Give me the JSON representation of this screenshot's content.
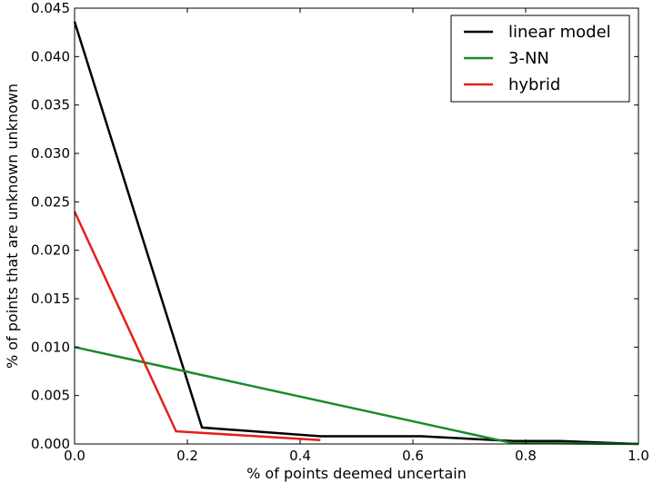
{
  "chart_data": {
    "type": "line",
    "title": "",
    "xlabel": "% of points deemed uncertain",
    "ylabel": "% of points that are unknown unknown",
    "xlim": [
      0.0,
      1.0
    ],
    "ylim": [
      0.0,
      0.045
    ],
    "x_ticks": [
      "0.0",
      "0.2",
      "0.4",
      "0.6",
      "0.8",
      "1.0"
    ],
    "y_ticks": [
      "0.000",
      "0.005",
      "0.010",
      "0.015",
      "0.020",
      "0.025",
      "0.030",
      "0.035",
      "0.040",
      "0.045"
    ],
    "grid": false,
    "legend_position": "top-right",
    "series": [
      {
        "name": "linear model",
        "color": "#000000",
        "x": [
          0.0,
          0.226,
          0.436,
          0.614,
          0.778,
          0.861,
          1.0
        ],
        "y": [
          0.0436,
          0.0017,
          0.0008,
          0.0008,
          0.0003,
          0.0003,
          0.0
        ]
      },
      {
        "name": "3-NN",
        "color": "#1b8a2b",
        "x": [
          0.0,
          0.775,
          1.0
        ],
        "y": [
          0.01,
          0.0001,
          0.0
        ]
      },
      {
        "name": "hybrid",
        "color": "#e3201b",
        "x": [
          0.0,
          0.18,
          0.436
        ],
        "y": [
          0.024,
          0.0013,
          0.0004
        ]
      }
    ]
  }
}
